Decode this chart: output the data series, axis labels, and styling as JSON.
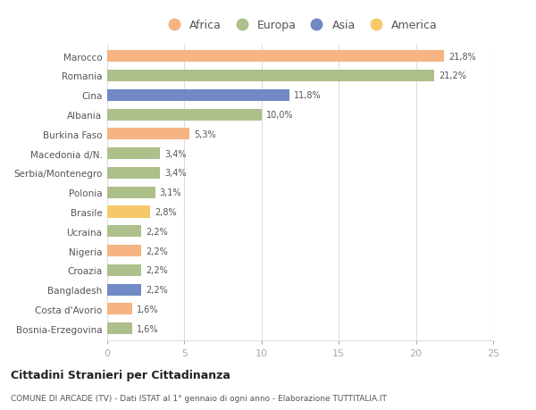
{
  "countries": [
    "Marocco",
    "Romania",
    "Cina",
    "Albania",
    "Burkina Faso",
    "Macedonia d/N.",
    "Serbia/Montenegro",
    "Polonia",
    "Brasile",
    "Ucraina",
    "Nigeria",
    "Croazia",
    "Bangladesh",
    "Costa d'Avorio",
    "Bosnia-Erzegovina"
  ],
  "values": [
    21.8,
    21.2,
    11.8,
    10.0,
    5.3,
    3.4,
    3.4,
    3.1,
    2.8,
    2.2,
    2.2,
    2.2,
    2.2,
    1.6,
    1.6
  ],
  "labels": [
    "21,8%",
    "21,2%",
    "11,8%",
    "10,0%",
    "5,3%",
    "3,4%",
    "3,4%",
    "3,1%",
    "2,8%",
    "2,2%",
    "2,2%",
    "2,2%",
    "2,2%",
    "1,6%",
    "1,6%"
  ],
  "colors": [
    "#F5B482",
    "#ADBF8A",
    "#7189C4",
    "#ADBF8A",
    "#F5B482",
    "#ADBF8A",
    "#ADBF8A",
    "#ADBF8A",
    "#F5C96A",
    "#ADBF8A",
    "#F5B482",
    "#ADBF8A",
    "#7189C4",
    "#F5B482",
    "#ADBF8A"
  ],
  "legend_labels": [
    "Africa",
    "Europa",
    "Asia",
    "America"
  ],
  "legend_colors": [
    "#F5B482",
    "#ADBF8A",
    "#7189C4",
    "#F5C96A"
  ],
  "title": "Cittadini Stranieri per Cittadinanza",
  "subtitle": "COMUNE DI ARCADE (TV) - Dati ISTAT al 1° gennaio di ogni anno - Elaborazione TUTTITALIA.IT",
  "xlim": [
    0,
    25
  ],
  "xticks": [
    0,
    5,
    10,
    15,
    20,
    25
  ],
  "bg_color": "#ffffff",
  "grid_color": "#dddddd",
  "bar_height": 0.6
}
